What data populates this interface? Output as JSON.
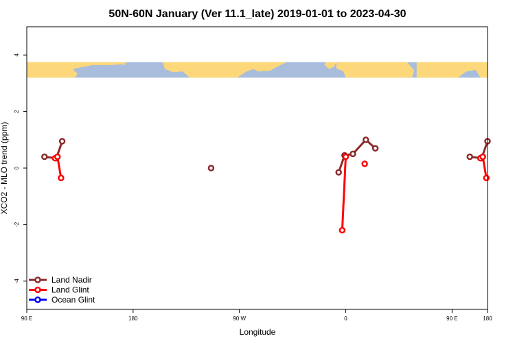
{
  "chart_data": {
    "type": "line",
    "title": "50N-60N January (Ver 11.1_late)   2019-01-01 to 2023-04-30",
    "xlabel": "Longitude",
    "ylabel": "XCO2 - MLO trend (ppm)",
    "xlim": [
      90,
      480
    ],
    "ylim": [
      -5,
      5
    ],
    "x_ticks": [
      {
        "value": 90,
        "label": "90 E"
      },
      {
        "value": 180,
        "label": "180"
      },
      {
        "value": 270,
        "label": "90 W"
      },
      {
        "value": 360,
        "label": "0"
      },
      {
        "value": 450,
        "label": "90 E"
      },
      {
        "value": 540,
        "label": "180"
      }
    ],
    "y_ticks": [
      {
        "value": -4,
        "label": "-4"
      },
      {
        "value": -2,
        "label": "-2"
      },
      {
        "value": 0,
        "label": "0"
      },
      {
        "value": 2,
        "label": "2"
      },
      {
        "value": 4,
        "label": "4"
      }
    ],
    "series": [
      {
        "name": "Land Nadir",
        "color": "#8b2a2a",
        "segments": [
          [
            [
              105,
              0.4
            ],
            [
              115,
              0.35
            ],
            [
              120,
              0.95
            ]
          ],
          [
            [
              246,
              0.0
            ]
          ],
          [
            [
              354,
              -0.15
            ],
            [
              359,
              0.45
            ],
            [
              366,
              0.5
            ],
            [
              377,
              1.0
            ],
            [
              385,
              0.7
            ]
          ],
          [
            [
              465,
              0.4
            ],
            [
              475,
              0.35
            ],
            [
              480,
              0.95
            ]
          ]
        ]
      },
      {
        "name": "Land Glint",
        "color": "#ff0000",
        "segments": [
          [
            [
              114,
              0.35
            ],
            [
              116,
              0.4
            ],
            [
              119,
              -0.35
            ]
          ],
          [
            [
              357,
              -2.2
            ],
            [
              360,
              0.4
            ]
          ],
          [
            [
              376,
              0.15
            ]
          ],
          [
            [
              474,
              0.35
            ],
            [
              476,
              0.4
            ],
            [
              479,
              -0.35
            ]
          ]
        ]
      },
      {
        "name": "Ocean Glint",
        "color": "#0000ff",
        "segments": []
      }
    ],
    "map_strip": {
      "ocean_color": "#a8bddc",
      "land_color": "#fdd87a",
      "y_range": [
        3.2,
        3.75
      ]
    },
    "legend_position": "bottom-left"
  }
}
